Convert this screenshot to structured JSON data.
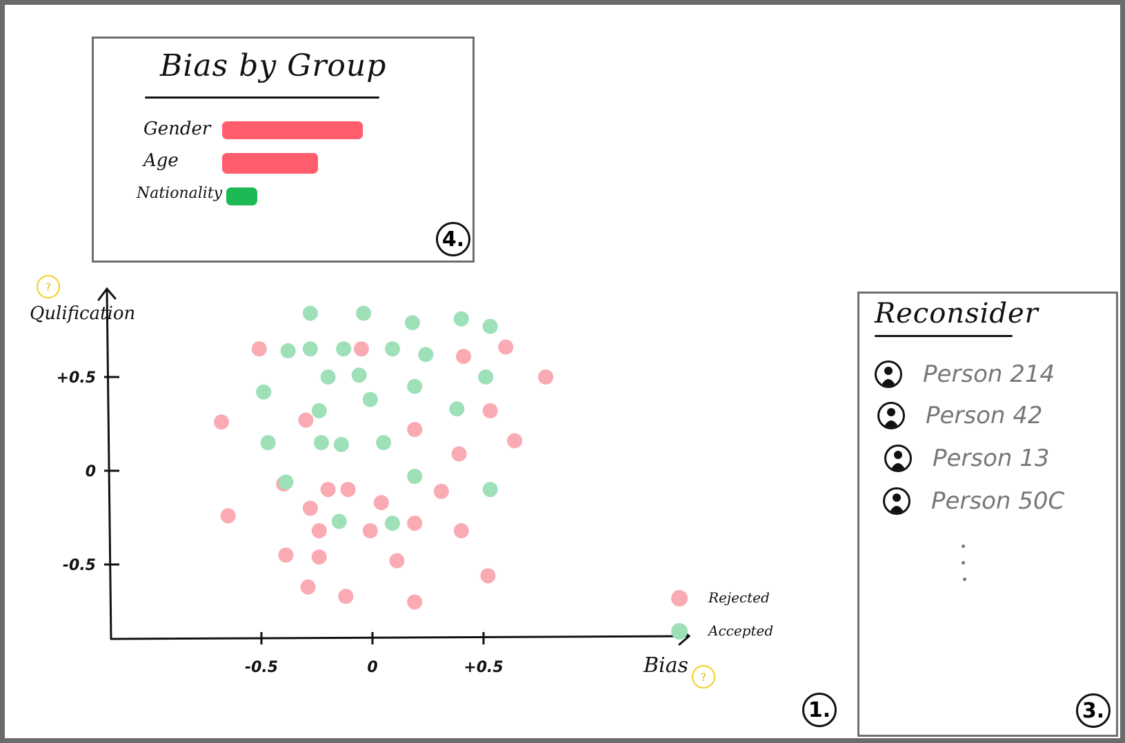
{
  "bias_panel": {
    "title": "Bias by Group",
    "number": "4.",
    "groups": [
      {
        "label": "Gender",
        "value": 1.0,
        "color": "#ff5c6c"
      },
      {
        "label": "Age",
        "value": 0.68,
        "color": "#ff5c6c"
      },
      {
        "label": "Nationality",
        "value": 0.22,
        "color": "#1db954"
      }
    ]
  },
  "reconsider_panel": {
    "title": "Reconsider",
    "number": "3.",
    "persons": [
      "Person 214",
      "Person 42",
      "Person 13",
      "Person 50C"
    ],
    "icon": "person-icon"
  },
  "help_icon_glyph": "?",
  "chart_data": {
    "type": "scatter",
    "number": "1.",
    "xlabel": "Bias",
    "ylabel": "Qulification",
    "x_ticks": [
      {
        "value": -0.5,
        "label": "-0.5"
      },
      {
        "value": 0,
        "label": "0"
      },
      {
        "value": 0.5,
        "label": "+0.5"
      }
    ],
    "y_ticks": [
      {
        "value": 0.5,
        "label": "+0.5"
      },
      {
        "value": 0,
        "label": "0"
      },
      {
        "value": -0.5,
        "label": "-0.5"
      }
    ],
    "xlim": [
      -1.16,
      1.32
    ],
    "ylim": [
      -0.91,
      0.95
    ],
    "legend_placement": "bottom-right",
    "series": [
      {
        "name": "Rejected",
        "color": "#f9aab2",
        "points": [
          [
            -0.68,
            0.26
          ],
          [
            -0.65,
            -0.24
          ],
          [
            -0.51,
            0.65
          ],
          [
            -0.4,
            -0.07
          ],
          [
            -0.39,
            -0.45
          ],
          [
            -0.29,
            -0.62
          ],
          [
            -0.3,
            0.27
          ],
          [
            -0.28,
            -0.2
          ],
          [
            -0.24,
            -0.32
          ],
          [
            -0.24,
            -0.46
          ],
          [
            -0.2,
            -0.1
          ],
          [
            -0.11,
            -0.1
          ],
          [
            -0.12,
            -0.67
          ],
          [
            -0.05,
            0.65
          ],
          [
            0.04,
            -0.17
          ],
          [
            0.11,
            -0.48
          ],
          [
            0.19,
            0.22
          ],
          [
            0.19,
            -0.28
          ],
          [
            0.19,
            -0.7
          ],
          [
            0.31,
            -0.11
          ],
          [
            0.41,
            0.61
          ],
          [
            0.39,
            0.09
          ],
          [
            0.4,
            -0.32
          ],
          [
            0.52,
            -0.56
          ],
          [
            0.53,
            0.32
          ],
          [
            0.6,
            0.66
          ],
          [
            0.64,
            0.16
          ],
          [
            0.78,
            0.5
          ],
          [
            -0.01,
            -0.32
          ]
        ]
      },
      {
        "name": "Accepted",
        "color": "#9ee0b8",
        "points": [
          [
            -0.28,
            0.84
          ],
          [
            -0.04,
            0.84
          ],
          [
            0.18,
            0.79
          ],
          [
            0.4,
            0.81
          ],
          [
            0.53,
            0.77
          ],
          [
            -0.49,
            0.42
          ],
          [
            -0.47,
            0.15
          ],
          [
            -0.38,
            0.64
          ],
          [
            -0.28,
            0.65
          ],
          [
            -0.13,
            0.65
          ],
          [
            0.09,
            0.65
          ],
          [
            0.24,
            0.62
          ],
          [
            -0.24,
            0.32
          ],
          [
            -0.23,
            0.15
          ],
          [
            -0.2,
            0.5
          ],
          [
            -0.06,
            0.51
          ],
          [
            -0.01,
            0.38
          ],
          [
            0.19,
            0.45
          ],
          [
            0.38,
            0.33
          ],
          [
            0.51,
            0.5
          ],
          [
            -0.14,
            0.14
          ],
          [
            0.05,
            0.15
          ],
          [
            -0.39,
            -0.06
          ],
          [
            0.19,
            -0.03
          ],
          [
            0.53,
            -0.1
          ],
          [
            -0.15,
            -0.27
          ],
          [
            0.09,
            -0.28
          ]
        ]
      }
    ]
  }
}
